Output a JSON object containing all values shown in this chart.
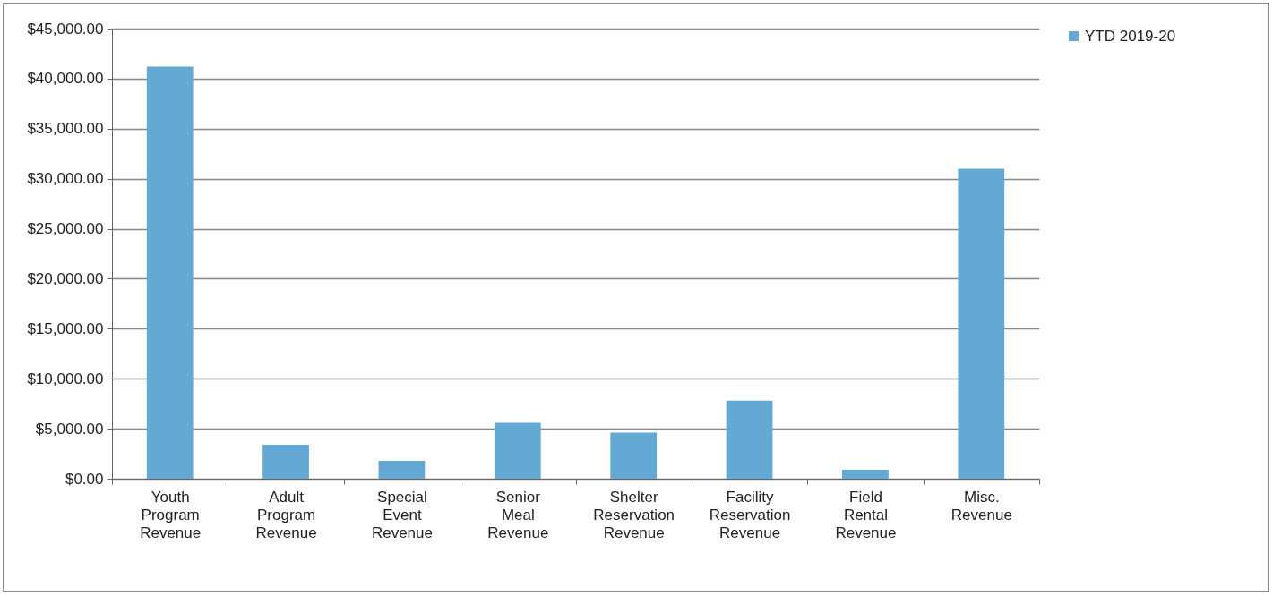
{
  "chart_data": {
    "type": "bar",
    "categories": [
      "Youth Program Revenue",
      "Adult Program Revenue",
      "Special Event Revenue",
      "Senior Meal Revenue",
      "Shelter Reservation Revenue",
      "Facility Reservation Revenue",
      "Field Rental Revenue",
      "Misc. Revenue"
    ],
    "series": [
      {
        "name": "YTD 2019-20",
        "color": "#64a8d4",
        "values": [
          41200,
          3400,
          1800,
          5600,
          4600,
          7800,
          900,
          31000
        ]
      }
    ],
    "ylim": [
      0,
      45000
    ],
    "yticks": [
      {
        "value": 0,
        "label": "$0.00"
      },
      {
        "value": 5000,
        "label": "$5,000.00"
      },
      {
        "value": 10000,
        "label": "$10,000.00"
      },
      {
        "value": 15000,
        "label": "$15,000.00"
      },
      {
        "value": 20000,
        "label": "$20,000.00"
      },
      {
        "value": 25000,
        "label": "$25,000.00"
      },
      {
        "value": 30000,
        "label": "$30,000.00"
      },
      {
        "value": 35000,
        "label": "$35,000.00"
      },
      {
        "value": 40000,
        "label": "$40,000.00"
      },
      {
        "value": 45000,
        "label": "$45,000.00"
      }
    ],
    "grid": "y",
    "legend": "right"
  }
}
